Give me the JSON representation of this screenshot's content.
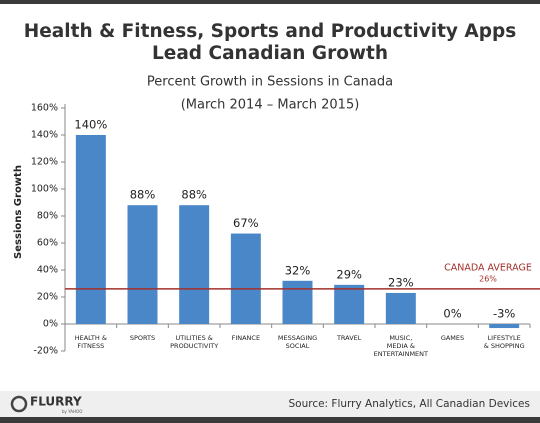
{
  "chart_data": {
    "type": "bar",
    "title": "Health & Fitness, Sports and Productivity Apps\nLead Canadian Growth",
    "subtitle": "Percent Growth in Sessions in Canada",
    "date_range": "(March 2014 – March 2015)",
    "y_label": "Sessions Growth",
    "categories": [
      "HEALTH &\nFITNESS",
      "SPORTS",
      "UTILITIES &\nPRODUCTIVITY",
      "FINANCE",
      "MESSAGING\nSOCIAL",
      "TRAVEL",
      "MUSIC,\nMEDIA &\nENTERTAINMENT",
      "GAMES",
      "LIFESTYLE\n& SHOPPING"
    ],
    "values": [
      140,
      88,
      88,
      67,
      32,
      29,
      23,
      0,
      -3
    ],
    "value_labels": [
      "140%",
      "88%",
      "88%",
      "67%",
      "32%",
      "29%",
      "23%",
      "0%",
      "-3%"
    ],
    "color": "#4a87c9",
    "ylim": [
      -20,
      160
    ],
    "yticks": [
      {
        "value": -20,
        "label": "-20%"
      },
      {
        "value": 0,
        "label": "0%"
      },
      {
        "value": 20,
        "label": "20%"
      },
      {
        "value": 40,
        "label": "40%"
      },
      {
        "value": 60,
        "label": "60%"
      },
      {
        "value": 80,
        "label": "80%"
      },
      {
        "value": 100,
        "label": "100%"
      },
      {
        "value": 120,
        "label": "120%"
      },
      {
        "value": 140,
        "label": "140%"
      },
      {
        "value": 160,
        "label": "160%"
      }
    ],
    "grid": false,
    "average": {
      "label": "CANADA AVERAGE",
      "value": 26,
      "value_label": "26%",
      "color": "#a3302b"
    }
  },
  "footer": {
    "logo": "FLURRY",
    "logo_sub": "by YAHOO",
    "source": "Source: Flurry Analytics, All Canadian Devices"
  }
}
